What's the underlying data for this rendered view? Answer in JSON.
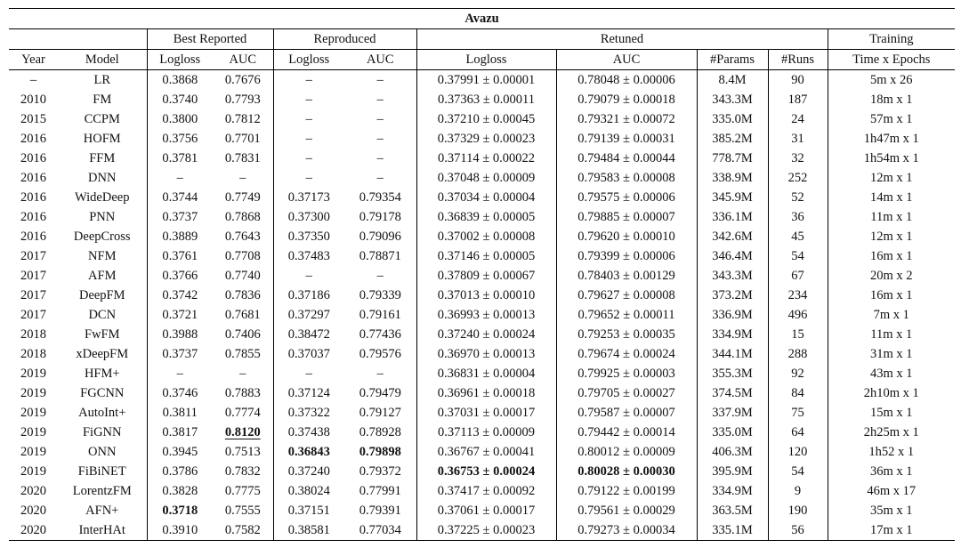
{
  "title": "Avazu",
  "groups": {
    "best_reported": "Best Reported",
    "reproduced": "Reproduced",
    "retuned": "Retuned",
    "training": "Training"
  },
  "columns": [
    "Year",
    "Model",
    "Logloss",
    "AUC",
    "Logloss",
    "AUC",
    "Logloss",
    "AUC",
    "#Params",
    "#Runs",
    "Time x Epochs"
  ],
  "rows": [
    [
      "–",
      "LR",
      "0.3868",
      "0.7676",
      "–",
      "–",
      "0.37991 ± 0.00001",
      "0.78048 ± 0.00006",
      "8.4M",
      "90",
      "5m x 26"
    ],
    [
      "2010",
      "FM",
      "0.3740",
      "0.7793",
      "–",
      "–",
      "0.37363 ± 0.00011",
      "0.79079 ± 0.00018",
      "343.3M",
      "187",
      "18m x 1"
    ],
    [
      "2015",
      "CCPM",
      "0.3800",
      "0.7812",
      "–",
      "–",
      "0.37210 ± 0.00045",
      "0.79321 ± 0.00072",
      "335.0M",
      "24",
      "57m x 1"
    ],
    [
      "2016",
      "HOFM",
      "0.3756",
      "0.7701",
      "–",
      "–",
      "0.37329 ± 0.00023",
      "0.79139 ± 0.00031",
      "385.2M",
      "31",
      "1h47m x 1"
    ],
    [
      "2016",
      "FFM",
      "0.3781",
      "0.7831",
      "–",
      "–",
      "0.37114 ± 0.00022",
      "0.79484 ± 0.00044",
      "778.7M",
      "32",
      "1h54m x 1"
    ],
    [
      "2016",
      "DNN",
      "–",
      "–",
      "–",
      "–",
      "0.37048 ± 0.00009",
      "0.79583 ± 0.00008",
      "338.9M",
      "252",
      "12m x 1"
    ],
    [
      "2016",
      "WideDeep",
      "0.3744",
      "0.7749",
      "0.37173",
      "0.79354",
      "0.37034 ± 0.00004",
      "0.79575 ± 0.00006",
      "345.9M",
      "52",
      "14m x 1"
    ],
    [
      "2016",
      "PNN",
      "0.3737",
      "0.7868",
      "0.37300",
      "0.79178",
      "0.36839 ± 0.00005",
      "0.79885 ± 0.00007",
      "336.1M",
      "36",
      "11m x 1"
    ],
    [
      "2016",
      "DeepCross",
      "0.3889",
      "0.7643",
      "0.37350",
      "0.79096",
      "0.37002 ± 0.00008",
      "0.79620 ± 0.00010",
      "342.6M",
      "45",
      "12m x 1"
    ],
    [
      "2017",
      "NFM",
      "0.3761",
      "0.7708",
      "0.37483",
      "0.78871",
      "0.37146 ± 0.00005",
      "0.79399 ± 0.00006",
      "346.4M",
      "54",
      "16m x 1"
    ],
    [
      "2017",
      "AFM",
      "0.3766",
      "0.7740",
      "–",
      "–",
      "0.37809 ± 0.00067",
      "0.78403 ± 0.00129",
      "343.3M",
      "67",
      "20m x 2"
    ],
    [
      "2017",
      "DeepFM",
      "0.3742",
      "0.7836",
      "0.37186",
      "0.79339",
      "0.37013 ± 0.00010",
      "0.79627 ± 0.00008",
      "373.2M",
      "234",
      "16m x 1"
    ],
    [
      "2017",
      "DCN",
      "0.3721",
      "0.7681",
      "0.37297",
      "0.79161",
      "0.36993 ± 0.00013",
      "0.79652 ± 0.00011",
      "336.9M",
      "496",
      "7m x 1"
    ],
    [
      "2018",
      "FwFM",
      "0.3988",
      "0.7406",
      "0.38472",
      "0.77436",
      "0.37240 ± 0.00024",
      "0.79253 ± 0.00035",
      "334.9M",
      "15",
      "11m x 1"
    ],
    [
      "2018",
      "xDeepFM",
      "0.3737",
      "0.7855",
      "0.37037",
      "0.79576",
      "0.36970 ± 0.00013",
      "0.79674 ± 0.00024",
      "344.1M",
      "288",
      "31m x 1"
    ],
    [
      "2019",
      "HFM+",
      "–",
      "–",
      "–",
      "–",
      "0.36831 ± 0.00004",
      "0.79925 ± 0.00003",
      "355.3M",
      "92",
      "43m x 1"
    ],
    [
      "2019",
      "FGCNN",
      "0.3746",
      "0.7883",
      "0.37124",
      "0.79479",
      "0.36961 ± 0.00018",
      "0.79705 ± 0.00027",
      "374.5M",
      "84",
      "2h10m x 1"
    ],
    [
      "2019",
      "AutoInt+",
      "0.3811",
      "0.7774",
      "0.37322",
      "0.79127",
      "0.37031 ± 0.00017",
      "0.79587 ± 0.00007",
      "337.9M",
      "75",
      "15m x 1"
    ],
    [
      "2019",
      "FiGNN",
      "0.3817",
      "0.8120",
      "0.37438",
      "0.78928",
      "0.37113 ± 0.00009",
      "0.79442 ± 0.00014",
      "335.0M",
      "64",
      "2h25m x 1"
    ],
    [
      "2019",
      "ONN",
      "0.3945",
      "0.7513",
      "0.36843",
      "0.79898",
      "0.36767 ± 0.00041",
      "0.80012 ± 0.00009",
      "406.3M",
      "120",
      "1h52 x 1"
    ],
    [
      "2019",
      "FiBiNET",
      "0.3786",
      "0.7832",
      "0.37240",
      "0.79372",
      "0.36753 ± 0.00024",
      "0.80028 ± 0.00030",
      "395.9M",
      "54",
      "36m x 1"
    ],
    [
      "2020",
      "LorentzFM",
      "0.3828",
      "0.7775",
      "0.38024",
      "0.77991",
      "0.37417 ± 0.00092",
      "0.79122 ± 0.00199",
      "334.9M",
      "9",
      "46m x 17"
    ],
    [
      "2020",
      "AFN+",
      "0.3718",
      "0.7555",
      "0.37151",
      "0.79391",
      "0.37061 ± 0.00017",
      "0.79561 ± 0.00029",
      "363.5M",
      "190",
      "35m x 1"
    ],
    [
      "2020",
      "InterHAt",
      "0.3910",
      "0.7582",
      "0.38581",
      "0.77034",
      "0.37225 ± 0.00023",
      "0.79273 ± 0.00034",
      "335.1M",
      "56",
      "17m x 1"
    ]
  ],
  "emphasis": {
    "bold": [
      [
        18,
        3
      ],
      [
        19,
        4
      ],
      [
        19,
        5
      ],
      [
        20,
        6
      ],
      [
        20,
        7
      ],
      [
        22,
        2
      ]
    ],
    "underline": [
      [
        18,
        3
      ]
    ]
  }
}
